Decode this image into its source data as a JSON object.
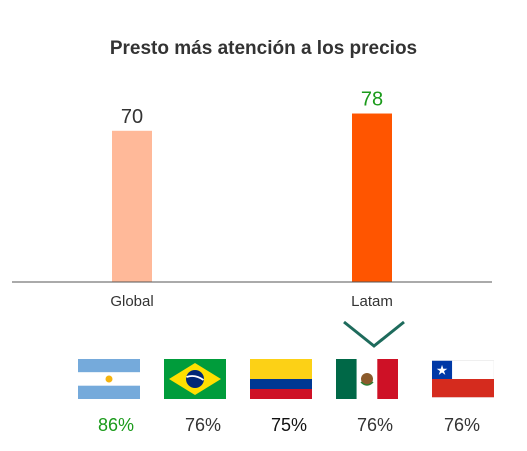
{
  "chart_data": {
    "type": "bar",
    "title": "Presto más atención a los precios",
    "categories": [
      "Global",
      "Latam"
    ],
    "values": [
      70,
      78
    ],
    "ylim": [
      0,
      100
    ],
    "grid": false,
    "colors": {
      "global_bar": "#FFB999",
      "latam_bar": "#FF5500",
      "global_label": "#333333",
      "latam_label": "#1A9A1A",
      "axis": "#555555",
      "chevron": "#1E6B5C"
    }
  },
  "countries": [
    {
      "flag": "argentina-flag",
      "value": "86%",
      "color": "#1A9A1A"
    },
    {
      "flag": "brazil-flag",
      "value": "76%",
      "color": "#333333"
    },
    {
      "flag": "colombia-flag",
      "value": "75%",
      "color": "#111111"
    },
    {
      "flag": "mexico-flag",
      "value": "76%",
      "color": "#333333"
    },
    {
      "flag": "chile-flag",
      "value": "76%",
      "color": "#333333"
    }
  ]
}
